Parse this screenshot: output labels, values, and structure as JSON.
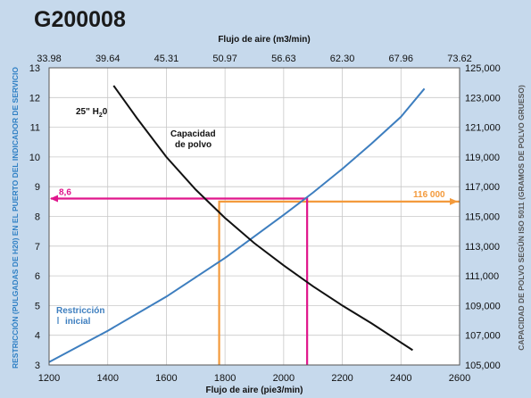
{
  "chart_data": {
    "type": "line",
    "title": "G200008",
    "x_top_label": "Flujo de aire (m3/min)",
    "x_top_ticks": [
      "33.98",
      "39.64",
      "45.31",
      "50.97",
      "56.63",
      "62.30",
      "67.96",
      "73.62"
    ],
    "xlabel": "Flujo de aire (pie3/min)",
    "x_ticks": [
      1200,
      1400,
      1600,
      1800,
      2000,
      2200,
      2400,
      2600
    ],
    "xlim": [
      1200,
      2600
    ],
    "ylabel": "RESTRICCIÓN (PULGADAS DE H20) EN EL PUERTO DEL INDICADOR DE SERVICIO",
    "y_ticks": [
      3,
      4,
      5,
      6,
      7,
      8,
      9,
      10,
      11,
      12,
      13
    ],
    "ylim": [
      3,
      13
    ],
    "y2label": "CAPACIDAD DE POLVO SEGÚN ISO 5011 (GRAMOS DE POLVO GRUESO)",
    "y2_ticks": [
      "105,000",
      "107,000",
      "109,000",
      "111,000",
      "113,000",
      "115,000",
      "117,000",
      "119,000",
      "121,000",
      "123,000",
      "125,000"
    ],
    "y2lim": [
      105000,
      125000
    ],
    "grid": true,
    "series": [
      {
        "name": "Restricción inicial",
        "label_lines": [
          "Restricción",
          "inicial"
        ],
        "axis": "left",
        "color": "#3d7ebf",
        "x": [
          1200,
          1400,
          1600,
          1800,
          2000,
          2100,
          2200,
          2300,
          2400,
          2480
        ],
        "y": [
          3.1,
          4.15,
          5.3,
          6.6,
          8.05,
          8.8,
          9.6,
          10.45,
          11.35,
          12.3
        ]
      },
      {
        "name": "Capacidad de polvo",
        "label_lines": [
          "Capacidad",
          "de polvo"
        ],
        "axis": "right",
        "color": "#111111",
        "x": [
          1420,
          1500,
          1600,
          1700,
          1800,
          1900,
          2000,
          2100,
          2200,
          2300,
          2440
        ],
        "y": [
          123800,
          121600,
          119000,
          116800,
          114900,
          113200,
          111700,
          110300,
          109000,
          107800,
          106000
        ]
      }
    ],
    "annotations": [
      {
        "text": "25\" H",
        "sub": "2",
        "tail": "0"
      },
      {
        "text": "8,6",
        "color": "#e0168c"
      },
      {
        "text": "116 000",
        "color": "#f39a3c"
      }
    ],
    "guides": {
      "magenta": {
        "color": "#e0168c",
        "x": 2080,
        "y": 8.6
      },
      "orange": {
        "color": "#f39a3c",
        "x": 1780,
        "y2": 116000
      }
    }
  }
}
